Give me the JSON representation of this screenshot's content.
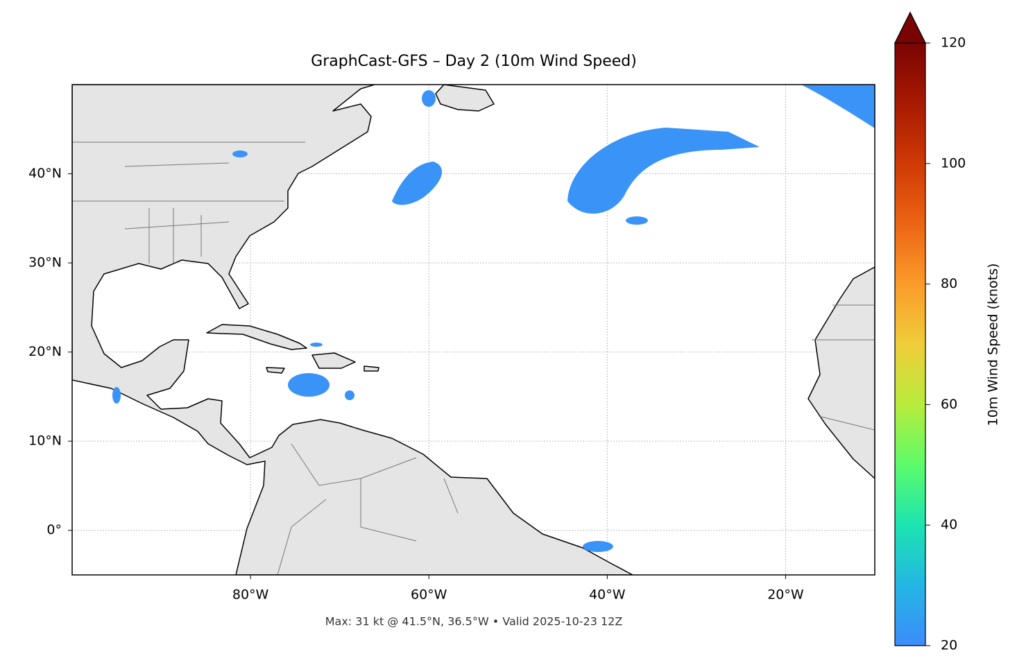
{
  "title": "GraphCast-GFS – Day 2 (10m Wind Speed)",
  "map": {
    "xlim": [
      -100,
      -10
    ],
    "ylim": [
      -5,
      50
    ],
    "xticks": [
      {
        "value": -80,
        "label": "80°W"
      },
      {
        "value": -60,
        "label": "60°W"
      },
      {
        "value": -40,
        "label": "40°W"
      },
      {
        "value": -20,
        "label": "20°W"
      }
    ],
    "yticks": [
      {
        "value": 0,
        "label": "0°"
      },
      {
        "value": 10,
        "label": "10°N"
      },
      {
        "value": 20,
        "label": "20°N"
      },
      {
        "value": 30,
        "label": "30°N"
      },
      {
        "value": 40,
        "label": "40°N"
      }
    ],
    "grid": true
  },
  "colorbar": {
    "label": "10m Wind Speed (knots)",
    "clim": [
      20,
      120
    ],
    "ticks": [
      20,
      40,
      60,
      80,
      100,
      120
    ]
  },
  "footnote": "Max: 31 kt @ 41.5°N, 36.5°W • Valid 2025-10-23 12Z"
}
